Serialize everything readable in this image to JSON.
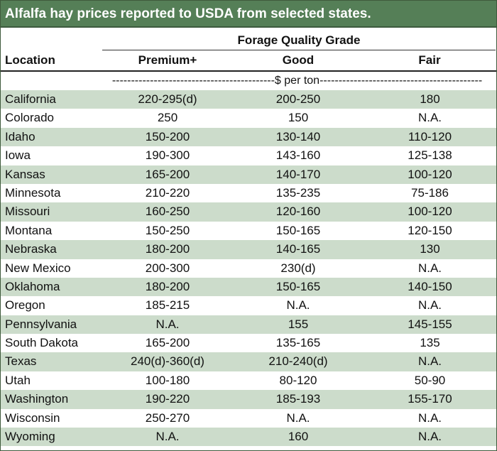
{
  "title": "Alfalfa hay prices reported to USDA from selected states.",
  "group_header": "Forage Quality Grade",
  "columns": {
    "location": "Location",
    "premium": "Premium+",
    "good": "Good",
    "fair": "Fair"
  },
  "units_row": "-------------------------------------------$ per ton-------------------------------------------",
  "colors": {
    "title_bar": "#557f57",
    "stripe": "#ccdccb"
  },
  "rows": [
    {
      "location": "California",
      "premium": "220-295(d)",
      "good": "200-250",
      "fair": "180"
    },
    {
      "location": "Colorado",
      "premium": "250",
      "good": "150",
      "fair": "N.A."
    },
    {
      "location": "Idaho",
      "premium": "150-200",
      "good": "130-140",
      "fair": "110-120"
    },
    {
      "location": "Iowa",
      "premium": "190-300",
      "good": "143-160",
      "fair": "125-138"
    },
    {
      "location": "Kansas",
      "premium": "165-200",
      "good": "140-170",
      "fair": "100-120"
    },
    {
      "location": "Minnesota",
      "premium": "210-220",
      "good": "135-235",
      "fair": "75-186"
    },
    {
      "location": "Missouri",
      "premium": "160-250",
      "good": "120-160",
      "fair": "100-120"
    },
    {
      "location": "Montana",
      "premium": "150-250",
      "good": "150-165",
      "fair": "120-150"
    },
    {
      "location": "Nebraska",
      "premium": "180-200",
      "good": "140-165",
      "fair": "130"
    },
    {
      "location": "New Mexico",
      "premium": "200-300",
      "good": "230(d)",
      "fair": "N.A."
    },
    {
      "location": "Oklahoma",
      "premium": "180-200",
      "good": "150-165",
      "fair": "140-150"
    },
    {
      "location": "Oregon",
      "premium": "185-215",
      "good": "N.A.",
      "fair": "N.A."
    },
    {
      "location": "Pennsylvania",
      "premium": "N.A.",
      "good": "155",
      "fair": "145-155"
    },
    {
      "location": "South Dakota",
      "premium": "165-200",
      "good": "135-165",
      "fair": "135"
    },
    {
      "location": "Texas",
      "premium": "240(d)-360(d)",
      "good": "210-240(d)",
      "fair": "N.A."
    },
    {
      "location": "Utah",
      "premium": "100-180",
      "good": "80-120",
      "fair": "50-90"
    },
    {
      "location": "Washington",
      "premium": "190-220",
      "good": "185-193",
      "fair": "155-170"
    },
    {
      "location": "Wisconsin",
      "premium": "250-270",
      "good": "N.A.",
      "fair": "N.A."
    },
    {
      "location": "Wyoming",
      "premium": "N.A.",
      "good": "160",
      "fair": "N.A."
    }
  ]
}
